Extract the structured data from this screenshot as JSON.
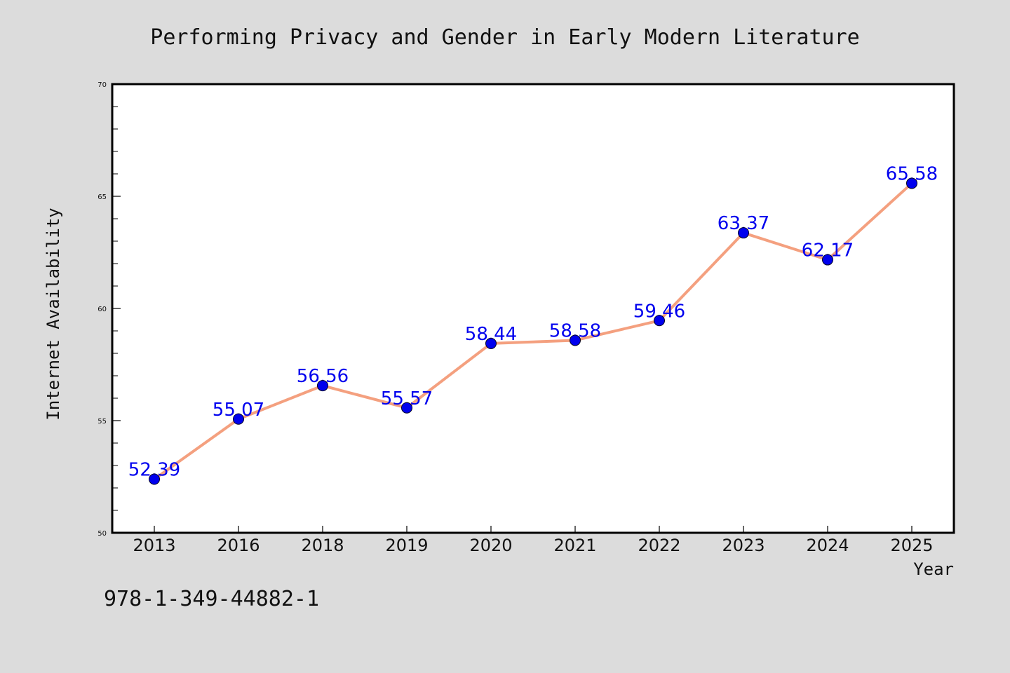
{
  "chart_data": {
    "type": "line",
    "title": "Performing Privacy and Gender in Early Modern Literature",
    "xlabel": "Year",
    "ylabel": "Internet Availability",
    "categories": [
      "2013",
      "2016",
      "2018",
      "2019",
      "2020",
      "2021",
      "2022",
      "2023",
      "2024",
      "2025"
    ],
    "series": [
      {
        "values": [
          52.39,
          55.07,
          56.56,
          55.57,
          58.44,
          58.58,
          59.46,
          63.37,
          62.17,
          65.58
        ],
        "line_color": "#f4a07f",
        "marker_color": "#0000ee",
        "label_color": "#0000ee"
      }
    ],
    "data_labels": [
      "52.39",
      "55.07",
      "56.56",
      "55.57",
      "58.44",
      "58.58",
      "59.46",
      "63.37",
      "62.17",
      "65.58"
    ],
    "ylim": [
      50,
      70
    ],
    "y_ticks": [
      "50",
      "55",
      "60",
      "65",
      "70"
    ],
    "grid": false,
    "legend": "none"
  },
  "footnote": "978-1-349-44882-1",
  "colors": {
    "background": "#dcdcdc",
    "plot_background": "#ffffff",
    "axis": "#000000"
  }
}
